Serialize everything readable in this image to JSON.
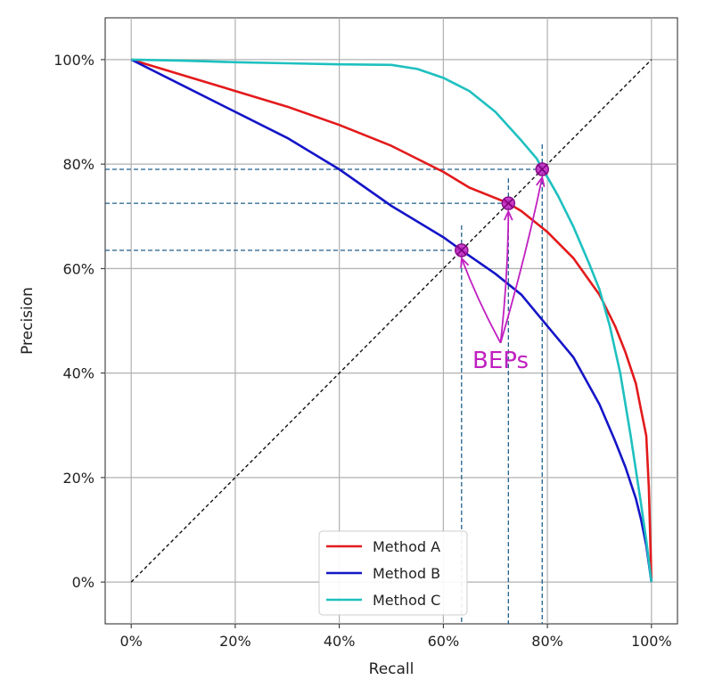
{
  "chart_data": {
    "type": "line",
    "title": "",
    "xlabel": "Recall",
    "ylabel": "Precision",
    "xlim": [
      -5,
      105
    ],
    "ylim": [
      -8,
      108
    ],
    "x_ticks": [
      "0%",
      "20%",
      "40%",
      "60%",
      "80%",
      "100%"
    ],
    "y_ticks": [
      "0%",
      "20%",
      "40%",
      "60%",
      "80%",
      "100%"
    ],
    "grid": true,
    "legend_position": "bottom-center",
    "series": [
      {
        "name": "Method A",
        "color": "#e31a1c",
        "x": [
          0,
          10,
          20,
          30,
          40,
          50,
          60,
          65,
          70,
          72.5,
          75,
          80,
          85,
          90,
          93,
          95,
          97,
          98,
          99,
          99.5,
          100
        ],
        "y": [
          100,
          97,
          94,
          91,
          87.5,
          83.5,
          78.5,
          75.5,
          73.5,
          72.5,
          71,
          67,
          62,
          55,
          49,
          44,
          38,
          33,
          28,
          18,
          0
        ]
      },
      {
        "name": "Method B",
        "color": "#1515c8",
        "x": [
          0,
          10,
          20,
          30,
          40,
          50,
          60,
          63.5,
          70,
          75,
          80,
          85,
          90,
          93,
          95,
          97,
          98,
          99,
          100
        ],
        "y": [
          100,
          95,
          90,
          85,
          79,
          72,
          66,
          63.5,
          59,
          55,
          49,
          43,
          34,
          27,
          22,
          16,
          12,
          7,
          0
        ]
      },
      {
        "name": "Method C",
        "color": "#1ec0c0",
        "x": [
          0,
          10,
          20,
          30,
          40,
          50,
          55,
          60,
          65,
          70,
          75,
          78,
          79,
          80,
          82,
          85,
          88,
          90,
          92,
          94,
          96,
          98,
          99,
          100
        ],
        "y": [
          100,
          99.8,
          99.5,
          99.3,
          99.1,
          99,
          98.2,
          96.5,
          94,
          90,
          84.5,
          81,
          79,
          77.5,
          74,
          68,
          61,
          56,
          49,
          40,
          28,
          15,
          8,
          0
        ]
      }
    ],
    "reference_line": {
      "label": "",
      "x": [
        0,
        100
      ],
      "y": [
        0,
        100
      ]
    },
    "break_even_points": [
      {
        "x": 63.5,
        "y": 63.5
      },
      {
        "x": 72.5,
        "y": 72.5
      },
      {
        "x": 79,
        "y": 79
      }
    ],
    "annotation": {
      "text": "BEPs",
      "x": 71,
      "y": 41,
      "color": "#c020c0"
    },
    "colors": {
      "bep_marker": "#c020c0",
      "guide_line": "#1f5f8b",
      "grid": "#b0b0b0"
    }
  }
}
